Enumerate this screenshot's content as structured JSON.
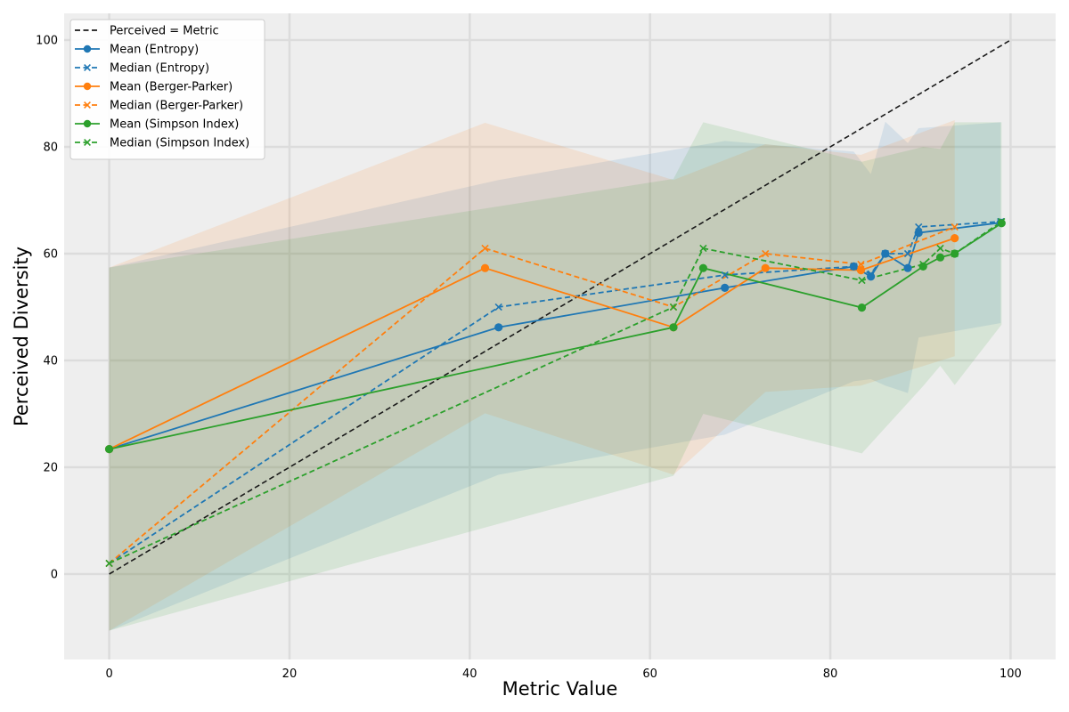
{
  "chart_data": {
    "type": "line",
    "title": "",
    "xlabel": "Metric Value",
    "ylabel": "Perceived Diversity",
    "xlim": [
      -5,
      105
    ],
    "ylim": [
      -16,
      105
    ],
    "x_ticks": [
      0,
      20,
      40,
      60,
      80,
      100
    ],
    "y_ticks": [
      0,
      20,
      40,
      60,
      80,
      100
    ],
    "grid": true,
    "legend_position": "top-left",
    "colors": {
      "entropy": "#1f77b4",
      "berger": "#ff7f0e",
      "simpson": "#2ca02c",
      "reference": "#1a1a1a",
      "plot_bg": "#eeeeee",
      "grid": "#dcdcdc"
    },
    "reference_line": {
      "name": "Perceived = Metric",
      "x": [
        0,
        100
      ],
      "y": [
        0,
        100
      ]
    },
    "metrics": [
      {
        "key": "entropy",
        "color": "#1f77b4",
        "x": [
          0,
          43.2,
          68.3,
          82.6,
          84.5,
          86.1,
          88.6,
          89.8,
          98.9
        ],
        "mean": [
          23.4,
          46.2,
          53.6,
          57.6,
          55.7,
          60.0,
          57.3,
          63.9,
          65.8
        ],
        "median": [
          2.0,
          50.0,
          56.0,
          57.6,
          56.2,
          60.0,
          60.0,
          65.0,
          66.0
        ],
        "band_upper": [
          57.4,
          73.8,
          81.1,
          79.1,
          74.9,
          84.7,
          80.7,
          83.5,
          84.6
        ],
        "band_lower": [
          -10.6,
          18.6,
          26.1,
          36.1,
          36.5,
          35.3,
          33.9,
          44.3,
          47.0
        ],
        "mean_name": "Mean (Entropy)",
        "median_name": "Median (Entropy)"
      },
      {
        "key": "berger",
        "color": "#ff7f0e",
        "x": [
          0,
          41.7,
          62.6,
          72.8,
          83.4,
          93.8
        ],
        "mean": [
          23.4,
          57.3,
          46.2,
          57.3,
          56.9,
          62.9
        ],
        "median": [
          2.0,
          61.0,
          50.0,
          60.0,
          58.0,
          65.0
        ],
        "band_upper": [
          57.4,
          84.5,
          73.8,
          80.5,
          78.5,
          85.0
        ],
        "band_lower": [
          -10.6,
          30.1,
          18.6,
          34.1,
          35.3,
          40.8
        ],
        "mean_name": "Mean (Berger-Parker)",
        "median_name": "Median (Berger-Parker)"
      },
      {
        "key": "simpson",
        "color": "#2ca02c",
        "x": [
          0,
          62.6,
          65.9,
          83.5,
          90.3,
          92.2,
          93.8,
          99.0
        ],
        "mean": [
          23.4,
          46.2,
          57.3,
          49.9,
          57.6,
          59.3,
          60.0,
          65.7
        ],
        "median": [
          2.0,
          50.0,
          61.0,
          55.0,
          58.0,
          61.0,
          60.0,
          66.0
        ],
        "band_upper": [
          57.4,
          74.0,
          84.6,
          77.2,
          80.0,
          79.6,
          84.6,
          84.6
        ],
        "band_lower": [
          -10.6,
          18.4,
          30.0,
          22.6,
          35.2,
          39.0,
          35.4,
          46.7
        ],
        "mean_name": "Mean (Simpson Index)",
        "median_name": "Median (Simpson Index)"
      }
    ],
    "legend": [
      "Perceived = Metric",
      "Mean (Entropy)",
      "Median (Entropy)",
      "Mean (Berger-Parker)",
      "Median (Berger-Parker)",
      "Mean (Simpson Index)",
      "Median (Simpson Index)"
    ]
  }
}
